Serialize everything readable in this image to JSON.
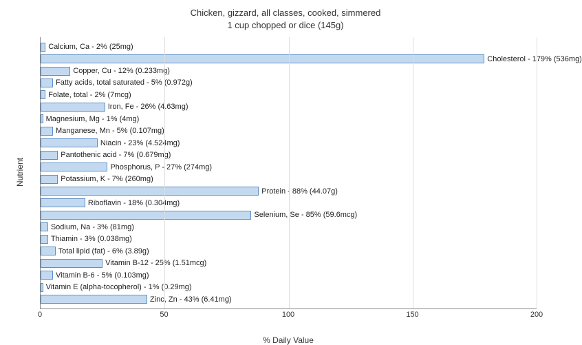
{
  "chart": {
    "type": "bar-horizontal",
    "title_line1": "Chicken, gizzard, all classes, cooked, simmered",
    "title_line2": "1 cup chopped or dice (145g)",
    "title_fontsize": 13,
    "xlabel": "% Daily Value",
    "ylabel": "Nutrient",
    "label_fontsize": 12,
    "bar_label_fontsize": 11,
    "xlim": [
      0,
      200
    ],
    "xticks": [
      0,
      50,
      100,
      150,
      200
    ],
    "background_color": "#ffffff",
    "grid_color": "#dddddd",
    "axis_color": "#888888",
    "bar_fill": "#c3d9f0",
    "bar_border": "#5b8fc7",
    "text_color": "#222222",
    "items": [
      {
        "label": "Calcium, Ca - 2% (25mg)",
        "value": 2
      },
      {
        "label": "Cholesterol - 179% (536mg)",
        "value": 179
      },
      {
        "label": "Copper, Cu - 12% (0.233mg)",
        "value": 12
      },
      {
        "label": "Fatty acids, total saturated - 5% (0.972g)",
        "value": 5
      },
      {
        "label": "Folate, total - 2% (7mcg)",
        "value": 2
      },
      {
        "label": "Iron, Fe - 26% (4.63mg)",
        "value": 26
      },
      {
        "label": "Magnesium, Mg - 1% (4mg)",
        "value": 1
      },
      {
        "label": "Manganese, Mn - 5% (0.107mg)",
        "value": 5
      },
      {
        "label": "Niacin - 23% (4.524mg)",
        "value": 23
      },
      {
        "label": "Pantothenic acid - 7% (0.679mg)",
        "value": 7
      },
      {
        "label": "Phosphorus, P - 27% (274mg)",
        "value": 27
      },
      {
        "label": "Potassium, K - 7% (260mg)",
        "value": 7
      },
      {
        "label": "Protein - 88% (44.07g)",
        "value": 88
      },
      {
        "label": "Riboflavin - 18% (0.304mg)",
        "value": 18
      },
      {
        "label": "Selenium, Se - 85% (59.6mcg)",
        "value": 85
      },
      {
        "label": "Sodium, Na - 3% (81mg)",
        "value": 3
      },
      {
        "label": "Thiamin - 3% (0.038mg)",
        "value": 3
      },
      {
        "label": "Total lipid (fat) - 6% (3.89g)",
        "value": 6
      },
      {
        "label": "Vitamin B-12 - 25% (1.51mcg)",
        "value": 25
      },
      {
        "label": "Vitamin B-6 - 5% (0.103mg)",
        "value": 5
      },
      {
        "label": "Vitamin E (alpha-tocopherol) - 1% (0.29mg)",
        "value": 1
      },
      {
        "label": "Zinc, Zn - 43% (6.41mg)",
        "value": 43
      }
    ]
  }
}
